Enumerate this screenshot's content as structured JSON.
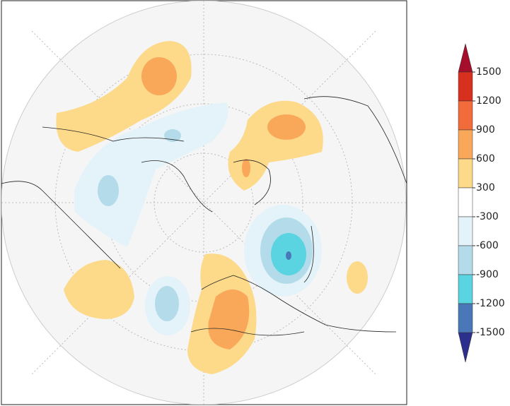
{
  "colorbar": {
    "ticks": [
      1500,
      1200,
      900,
      600,
      300,
      -300,
      -600,
      -900,
      -1200,
      -1500
    ],
    "colors": [
      "#d7301f",
      "#f26b3a",
      "#f9a85a",
      "#fdd98a",
      "#ffffff",
      "#e3f3f9",
      "#b4dbe9",
      "#5ad4e0",
      "#4a77b8"
    ],
    "over_color": "#a50f2b",
    "under_color": "#2c2f8c"
  }
}
